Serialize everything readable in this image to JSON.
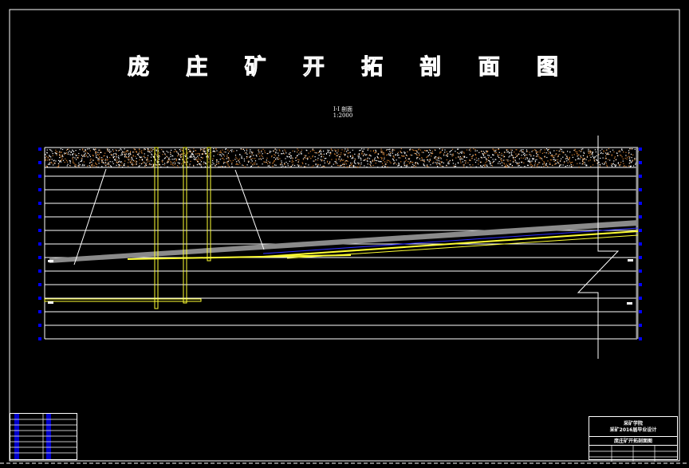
{
  "title": {
    "chars": [
      "庞",
      "庄",
      "矿",
      "开",
      "拓",
      "剖",
      "面",
      "图"
    ]
  },
  "section": {
    "name": "I-I 剖面",
    "scale": "1:2000"
  },
  "title_block": {
    "line1": "采矿学院",
    "line2": "采矿2016届毕业设计",
    "line3": "庞庄矿开拓剖面图"
  },
  "colors": {
    "background": "#000000",
    "lines": "#ffffff",
    "seam": "#8a8a8a",
    "roadway": "#ffff33",
    "markers": "#0000ff",
    "soil": "#c87a30"
  }
}
